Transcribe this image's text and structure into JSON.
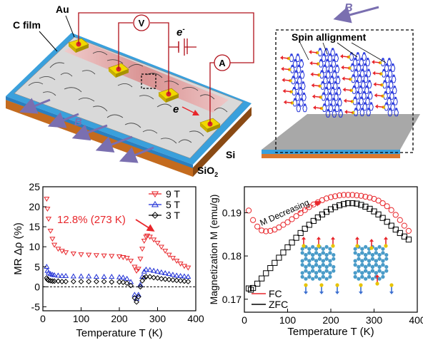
{
  "device": {
    "labels": {
      "c_film": "C film",
      "au": "Au",
      "voltmeter": "V",
      "ammeter": "A",
      "electron": "e",
      "electron_sup": "-",
      "electron2": "e",
      "field": "B",
      "sio2": "SiO",
      "sio2_sub": "2",
      "si": "Si"
    }
  },
  "spin_panel": {
    "title": "Spin allignment",
    "field": "B"
  },
  "colors": {
    "red": "#e8262b",
    "blue": "#1f2fd6",
    "black": "#000000",
    "purple": "#7a6fb0",
    "gold": "#e8c400",
    "orange": "#d9782f",
    "atom": "#4a9cc9"
  },
  "mr_panel": {
    "ylabel": "MR Δρ (%)",
    "xlabel": "Temperature T (K)",
    "annotation": "12.8% (273 K)",
    "xticks": [
      "0",
      "100",
      "200",
      "300",
      "400"
    ],
    "yticks": [
      "25",
      "20",
      "15",
      "10",
      "5",
      "0",
      "-5"
    ],
    "legend": [
      "9 T",
      "5 T",
      "3 T"
    ]
  },
  "mag_panel": {
    "ylabel": "Magnetization M (emu/g)",
    "xlabel": "Temperature T (K)",
    "annotation": "M Decreasing",
    "xticks": [
      "0",
      "100",
      "200",
      "300",
      "400"
    ],
    "yticks": [
      "0.19",
      "0.18",
      "0.17"
    ],
    "legend": [
      "FC",
      "ZFC"
    ]
  },
  "chart_data": [
    {
      "type": "scatter",
      "xlabel": "Temperature T (K)",
      "ylabel": "MR Δρ (%)",
      "xlim": [
        0,
        400
      ],
      "ylim": [
        -6,
        25
      ],
      "grid": false,
      "legend_position": "top-right",
      "annotation": "12.8% (273 K)",
      "series": [
        {
          "name": "9 T",
          "color": "#e8262b",
          "marker": "triangle-down",
          "x": [
            10,
            12,
            15,
            20,
            25,
            30,
            40,
            50,
            60,
            80,
            100,
            120,
            140,
            160,
            180,
            200,
            210,
            220,
            230,
            240,
            245,
            250,
            255,
            260,
            265,
            270,
            273,
            280,
            290,
            300,
            310,
            320,
            330,
            340,
            350,
            360,
            370,
            380
          ],
          "y": [
            22,
            19.5,
            17,
            14,
            12,
            10.5,
            9.5,
            9,
            8.6,
            8.3,
            8.1,
            8.0,
            7.9,
            7.8,
            7.7,
            7.6,
            7.4,
            7.2,
            6.5,
            5.0,
            4.0,
            4.5,
            7,
            9.5,
            11.5,
            12.5,
            12.8,
            12.5,
            11.8,
            11.0,
            10.0,
            9.0,
            8.0,
            7.2,
            6.5,
            5.8,
            5.2,
            4.8
          ]
        },
        {
          "name": "5 T",
          "color": "#1f2fd6",
          "marker": "triangle-up",
          "x": [
            10,
            12,
            15,
            20,
            25,
            30,
            40,
            50,
            60,
            80,
            100,
            120,
            140,
            160,
            180,
            200,
            210,
            220,
            230,
            240,
            245,
            250,
            255,
            260,
            265,
            270,
            280,
            290,
            300,
            310,
            320,
            330,
            340,
            350,
            360,
            370,
            380
          ],
          "y": [
            5.0,
            4.0,
            3.5,
            3.2,
            3.0,
            2.9,
            2.8,
            2.7,
            2.7,
            2.6,
            2.6,
            2.6,
            2.5,
            2.5,
            2.5,
            2.4,
            2.3,
            2.0,
            1.2,
            -2.0,
            -3.0,
            -2.0,
            0.5,
            2.5,
            3.8,
            4.3,
            4.2,
            4.0,
            3.8,
            3.6,
            3.4,
            3.2,
            3.0,
            2.8,
            2.7,
            2.6,
            2.5
          ]
        },
        {
          "name": "3 T",
          "color": "#000000",
          "marker": "diamond",
          "x": [
            10,
            12,
            15,
            20,
            25,
            30,
            40,
            50,
            60,
            80,
            100,
            120,
            140,
            160,
            180,
            200,
            210,
            220,
            230,
            240,
            245,
            250,
            255,
            260,
            265,
            270,
            280,
            290,
            300,
            310,
            320,
            330,
            340,
            350,
            360,
            370,
            380
          ],
          "y": [
            2.2,
            1.8,
            1.6,
            1.5,
            1.4,
            1.4,
            1.4,
            1.3,
            1.3,
            1.3,
            1.3,
            1.3,
            1.3,
            1.3,
            1.2,
            1.2,
            1.1,
            0.9,
            0.3,
            -2.8,
            -3.8,
            -2.5,
            0.0,
            1.5,
            2.2,
            2.5,
            2.5,
            2.3,
            2.2,
            2.0,
            1.9,
            1.8,
            1.7,
            1.6,
            1.5,
            1.4,
            1.3
          ]
        }
      ]
    },
    {
      "type": "scatter",
      "xlabel": "Temperature T (K)",
      "ylabel": "Magnetization M (emu/g)",
      "xlim": [
        0,
        400
      ],
      "ylim": [
        0.167,
        0.196
      ],
      "grid": false,
      "legend_position": "bottom-left",
      "annotation": "M Decreasing",
      "series": [
        {
          "name": "FC",
          "color": "#e8262b",
          "marker": "circle",
          "x": [
            10,
            20,
            30,
            40,
            50,
            60,
            70,
            80,
            90,
            100,
            110,
            120,
            130,
            140,
            150,
            160,
            170,
            180,
            190,
            200,
            210,
            220,
            230,
            240,
            250,
            260,
            270,
            280,
            290,
            300,
            310,
            320,
            330,
            340,
            350,
            360,
            370,
            380
          ],
          "y": [
            0.1905,
            0.1883,
            0.1868,
            0.1859,
            0.1857,
            0.1858,
            0.1861,
            0.1866,
            0.1872,
            0.1878,
            0.1885,
            0.1892,
            0.1899,
            0.1906,
            0.1913,
            0.1919,
            0.1924,
            0.1929,
            0.1933,
            0.1936,
            0.1938,
            0.194,
            0.1941,
            0.1941,
            0.1941,
            0.194,
            0.1939,
            0.1937,
            0.1935,
            0.1932,
            0.1928,
            0.1922,
            0.1915,
            0.1906,
            0.1895,
            0.1883,
            0.187,
            0.1858
          ]
        },
        {
          "name": "ZFC",
          "color": "#000000",
          "marker": "square",
          "x": [
            10,
            15,
            20,
            30,
            40,
            50,
            60,
            70,
            80,
            90,
            100,
            110,
            120,
            130,
            140,
            150,
            160,
            170,
            180,
            190,
            200,
            210,
            220,
            230,
            240,
            250,
            260,
            270,
            280,
            290,
            300,
            310,
            320,
            330,
            340,
            350,
            360,
            370,
            380
          ],
          "y": [
            0.1725,
            0.1722,
            0.1726,
            0.1736,
            0.1748,
            0.176,
            0.1772,
            0.1784,
            0.1796,
            0.1808,
            0.182,
            0.1831,
            0.1842,
            0.1853,
            0.1863,
            0.1872,
            0.1881,
            0.1889,
            0.1896,
            0.1902,
            0.1908,
            0.1913,
            0.1917,
            0.192,
            0.1922,
            0.1922,
            0.1921,
            0.1918,
            0.1914,
            0.1909,
            0.1903,
            0.1896,
            0.1888,
            0.1879,
            0.187,
            0.1861,
            0.1853,
            0.1845,
            0.1838
          ]
        }
      ]
    }
  ]
}
